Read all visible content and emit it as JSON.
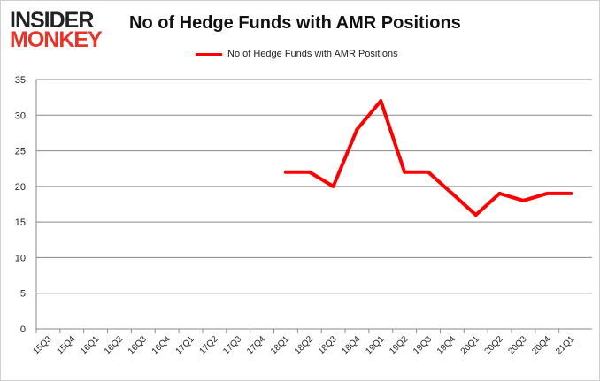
{
  "logo": {
    "line1": "INSIDER",
    "line2": "MONKEY"
  },
  "chart_data": {
    "type": "line",
    "title": "No of Hedge Funds with AMR Positions",
    "categories": [
      "15Q3",
      "15Q4",
      "16Q1",
      "16Q2",
      "16Q3",
      "16Q4",
      "17Q1",
      "17Q2",
      "17Q3",
      "17Q4",
      "18Q1",
      "18Q2",
      "18Q3",
      "18Q4",
      "19Q1",
      "19Q2",
      "19Q3",
      "19Q4",
      "20Q1",
      "20Q2",
      "20Q3",
      "20Q4",
      "21Q1"
    ],
    "series": [
      {
        "name": "No of Hedge Funds with AMR Positions",
        "color": "#ff0000",
        "values": [
          null,
          null,
          null,
          null,
          null,
          null,
          null,
          null,
          null,
          null,
          22,
          22,
          20,
          28,
          32,
          22,
          22,
          19,
          16,
          19,
          18,
          19,
          19
        ]
      }
    ],
    "xlabel": "",
    "ylabel": "",
    "ylim": [
      0,
      35
    ],
    "yticks": [
      0,
      5,
      10,
      15,
      20,
      25,
      30,
      35
    ],
    "grid": true,
    "legend": "top"
  }
}
